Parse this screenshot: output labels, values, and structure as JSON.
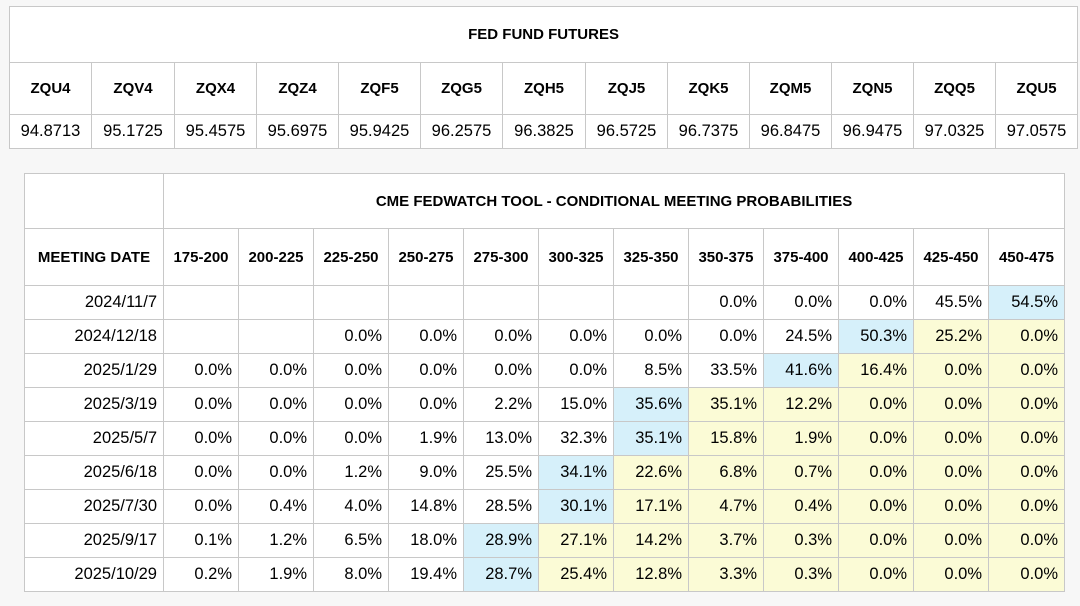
{
  "futures": {
    "title": "FED FUND FUTURES",
    "headers": [
      "ZQU4",
      "ZQV4",
      "ZQX4",
      "ZQZ4",
      "ZQF5",
      "ZQG5",
      "ZQH5",
      "ZQJ5",
      "ZQK5",
      "ZQM5",
      "ZQN5",
      "ZQQ5",
      "ZQU5"
    ],
    "values": [
      "94.8713",
      "95.1725",
      "95.4575",
      "95.6975",
      "95.9425",
      "96.2575",
      "96.3825",
      "96.5725",
      "96.7375",
      "96.8475",
      "96.9475",
      "97.0325",
      "97.0575"
    ]
  },
  "fedwatch": {
    "title": "CME FEDWATCH TOOL - CONDITIONAL MEETING PROBABILITIES",
    "date_header": "MEETING DATE",
    "ranges": [
      "175-200",
      "200-225",
      "225-250",
      "250-275",
      "275-300",
      "300-325",
      "325-350",
      "350-375",
      "375-400",
      "400-425",
      "425-450",
      "450-475"
    ],
    "rows": [
      {
        "date": "2024/11/7",
        "probs": [
          "",
          "",
          "",
          "",
          "",
          "",
          "",
          "0.0%",
          "0.0%",
          "0.0%",
          "45.5%",
          "54.5%"
        ],
        "hl": [
          "",
          "",
          "",
          "",
          "",
          "",
          "",
          "",
          "",
          "",
          "",
          "b"
        ]
      },
      {
        "date": "2024/12/18",
        "probs": [
          "",
          "",
          "0.0%",
          "0.0%",
          "0.0%",
          "0.0%",
          "0.0%",
          "0.0%",
          "24.5%",
          "50.3%",
          "25.2%",
          "0.0%"
        ],
        "hl": [
          "",
          "",
          "",
          "",
          "",
          "",
          "",
          "",
          "",
          "b",
          "y",
          "y"
        ]
      },
      {
        "date": "2025/1/29",
        "probs": [
          "0.0%",
          "0.0%",
          "0.0%",
          "0.0%",
          "0.0%",
          "0.0%",
          "8.5%",
          "33.5%",
          "41.6%",
          "16.4%",
          "0.0%",
          "0.0%"
        ],
        "hl": [
          "",
          "",
          "",
          "",
          "",
          "",
          "",
          "",
          "b",
          "y",
          "y",
          "y"
        ]
      },
      {
        "date": "2025/3/19",
        "probs": [
          "0.0%",
          "0.0%",
          "0.0%",
          "0.0%",
          "2.2%",
          "15.0%",
          "35.6%",
          "35.1%",
          "12.2%",
          "0.0%",
          "0.0%",
          "0.0%"
        ],
        "hl": [
          "",
          "",
          "",
          "",
          "",
          "",
          "b",
          "y",
          "y",
          "y",
          "y",
          "y"
        ]
      },
      {
        "date": "2025/5/7",
        "probs": [
          "0.0%",
          "0.0%",
          "0.0%",
          "1.9%",
          "13.0%",
          "32.3%",
          "35.1%",
          "15.8%",
          "1.9%",
          "0.0%",
          "0.0%",
          "0.0%"
        ],
        "hl": [
          "",
          "",
          "",
          "",
          "",
          "",
          "b",
          "y",
          "y",
          "y",
          "y",
          "y"
        ]
      },
      {
        "date": "2025/6/18",
        "probs": [
          "0.0%",
          "0.0%",
          "1.2%",
          "9.0%",
          "25.5%",
          "34.1%",
          "22.6%",
          "6.8%",
          "0.7%",
          "0.0%",
          "0.0%",
          "0.0%"
        ],
        "hl": [
          "",
          "",
          "",
          "",
          "",
          "b",
          "y",
          "y",
          "y",
          "y",
          "y",
          "y"
        ]
      },
      {
        "date": "2025/7/30",
        "probs": [
          "0.0%",
          "0.4%",
          "4.0%",
          "14.8%",
          "28.5%",
          "30.1%",
          "17.1%",
          "4.7%",
          "0.4%",
          "0.0%",
          "0.0%",
          "0.0%"
        ],
        "hl": [
          "",
          "",
          "",
          "",
          "",
          "b",
          "y",
          "y",
          "y",
          "y",
          "y",
          "y"
        ]
      },
      {
        "date": "2025/9/17",
        "probs": [
          "0.1%",
          "1.2%",
          "6.5%",
          "18.0%",
          "28.9%",
          "27.1%",
          "14.2%",
          "3.7%",
          "0.3%",
          "0.0%",
          "0.0%",
          "0.0%"
        ],
        "hl": [
          "",
          "",
          "",
          "",
          "b",
          "y",
          "y",
          "y",
          "y",
          "y",
          "y",
          "y"
        ]
      },
      {
        "date": "2025/10/29",
        "probs": [
          "0.2%",
          "1.9%",
          "8.0%",
          "19.4%",
          "28.7%",
          "25.4%",
          "12.8%",
          "3.3%",
          "0.3%",
          "0.0%",
          "0.0%",
          "0.0%"
        ],
        "hl": [
          "",
          "",
          "",
          "",
          "b",
          "y",
          "y",
          "y",
          "y",
          "y",
          "y",
          "y"
        ]
      }
    ]
  },
  "colors": {
    "highlight_blue": "#d6f0fa",
    "highlight_yellow": "#fbfbd6",
    "border": "#c8c8c8"
  }
}
